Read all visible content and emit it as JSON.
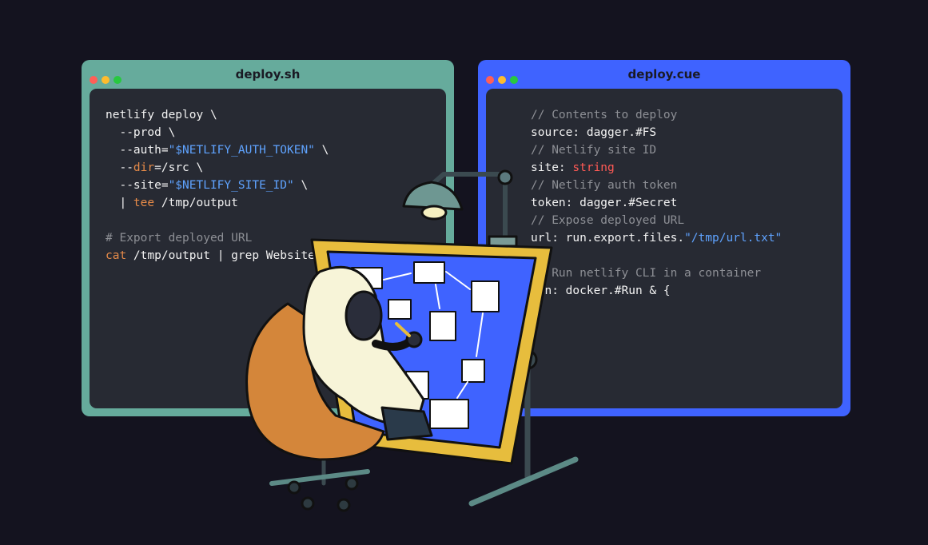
{
  "colors": {
    "background": "#14131f",
    "left_window": "#66ab9c",
    "right_window": "#3f63ff",
    "panel": "#272a33",
    "dot_red": "#ff5f57",
    "dot_yellow": "#febc2e",
    "dot_green": "#28c840"
  },
  "left_window": {
    "title": "deploy.sh",
    "lines": [
      [
        "netlify deploy \\"
      ],
      [
        "  --prod \\"
      ],
      [
        "  --auth=",
        "\"$NETLIFY_AUTH_TOKEN\"",
        " \\"
      ],
      [
        "  --",
        "dir",
        "=/src \\"
      ],
      [
        "  --site=",
        "\"$NETLIFY_SITE_ID\"",
        " \\"
      ],
      [
        "  | ",
        "tee",
        " /tmp/output"
      ],
      [
        ""
      ],
      [
        "# Export deployed URL"
      ],
      [
        "cat",
        " /tmp/output | grep Website"
      ]
    ]
  },
  "right_window": {
    "title": "deploy.cue",
    "lines": [
      [
        "// Contents to deploy"
      ],
      [
        "source: dagger.#FS"
      ],
      [
        "// Netlify site ID"
      ],
      [
        "site: ",
        "string"
      ],
      [
        "// Netlify auth token"
      ],
      [
        "token: dagger.#Secret"
      ],
      [
        "// Expose deployed URL"
      ],
      [
        "url: run.export.files.",
        "\"/tmp/url.txt\""
      ],
      [
        ""
      ],
      [
        "// Run netlify CLI in a container"
      ],
      [
        "run: docker.#Run & {"
      ]
    ]
  },
  "illustration": {
    "subject": "astronaut-drawing-flowchart-at-drafting-table"
  }
}
